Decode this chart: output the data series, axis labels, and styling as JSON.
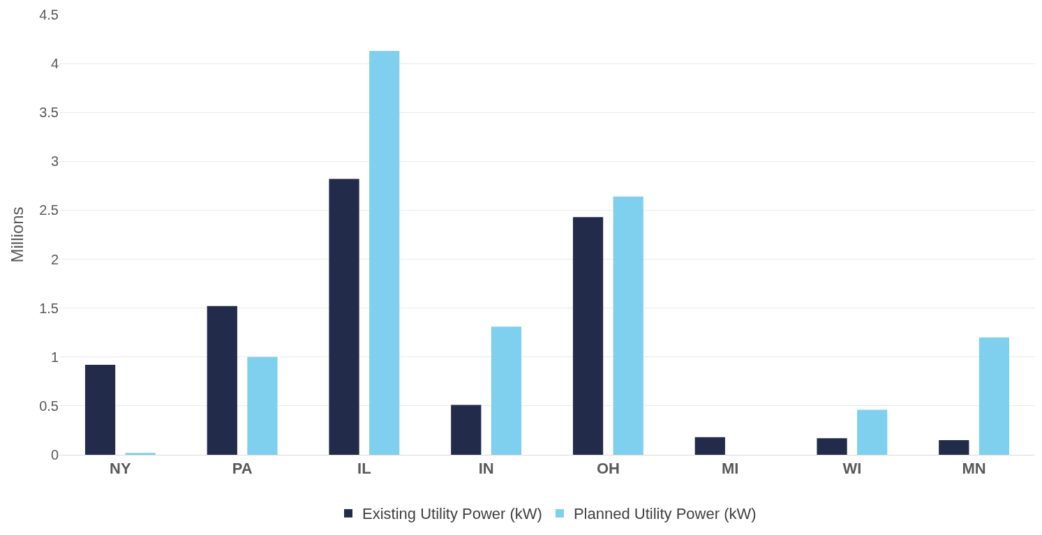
{
  "chart_data": {
    "type": "bar",
    "ylabel": "Millions",
    "categories": [
      "NY",
      "PA",
      "IL",
      "IN",
      "OH",
      "MI",
      "WI",
      "MN"
    ],
    "series": [
      {
        "name": "Existing Utility Power (kW)",
        "color": "#232b4a",
        "values": [
          0.92,
          1.52,
          2.82,
          0.51,
          2.43,
          0.18,
          0.17,
          0.15
        ]
      },
      {
        "name": "Planned Utility Power (kW)",
        "color": "#7fd0ee",
        "values": [
          0.02,
          1.0,
          4.13,
          1.31,
          2.64,
          0,
          0.46,
          1.2
        ]
      }
    ],
    "ylim": [
      0,
      4.5
    ],
    "yticks": [
      0,
      0.5,
      1,
      1.5,
      2,
      2.5,
      3,
      3.5,
      4,
      4.5
    ],
    "grid": "y",
    "legend": "bottom"
  }
}
